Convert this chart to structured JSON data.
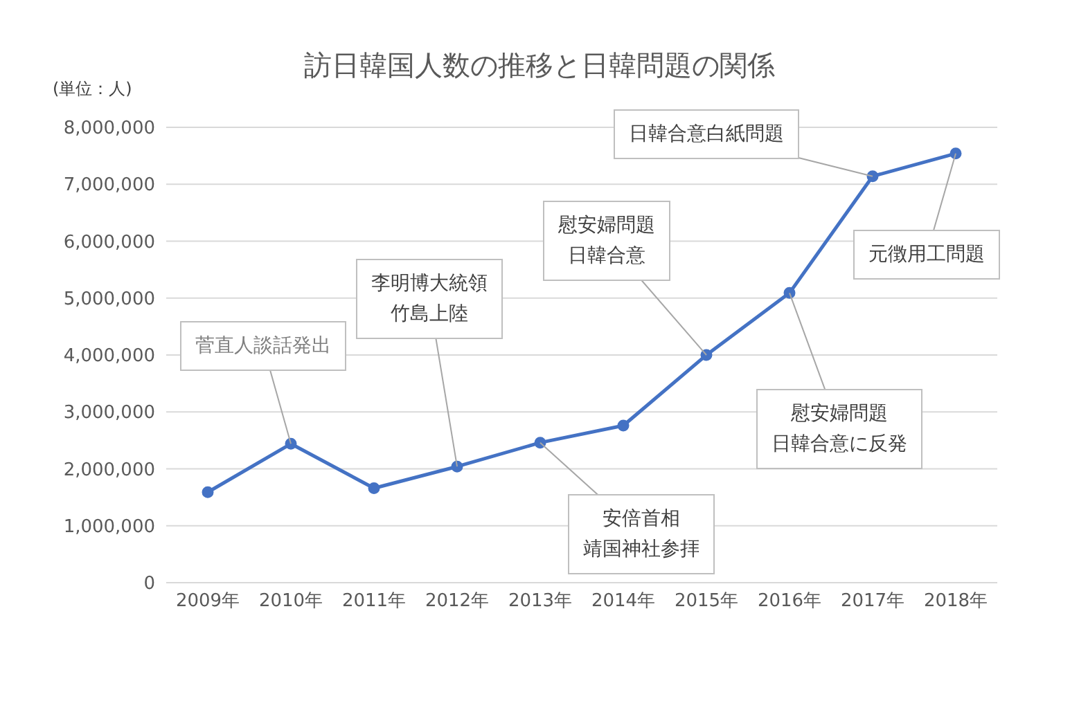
{
  "chart_data": {
    "type": "line",
    "title": "訪日韓国人数の推移と日韓問題の関係",
    "ylabel": "(単位：人)",
    "categories": [
      "2009年",
      "2010年",
      "2011年",
      "2012年",
      "2013年",
      "2014年",
      "2015年",
      "2016年",
      "2017年",
      "2018年"
    ],
    "series": [
      {
        "color": "#4472c4",
        "values": [
          1590000,
          2440000,
          1660000,
          2040000,
          2460000,
          2760000,
          4000000,
          5090000,
          7140000,
          7540000
        ]
      }
    ],
    "ylim": [
      0,
      8000000
    ],
    "yticks": [
      0,
      {
        "value": 1000000,
        "label": "1,000,000"
      },
      {
        "value": 2000000,
        "label": "2,000,000"
      },
      {
        "value": 3000000,
        "label": "3,000,000"
      },
      {
        "value": 4000000,
        "label": "4,000,000"
      },
      {
        "value": 5000000,
        "label": "5,000,000"
      },
      {
        "value": 6000000,
        "label": "6,000,000"
      },
      {
        "value": 7000000,
        "label": "7,000,000"
      },
      {
        "value": 8000000,
        "label": "8,000,000"
      }
    ],
    "grid": "y",
    "legend": false,
    "marker": "circle",
    "line_style": "solid",
    "annotations": [
      {
        "text": "菅直人談話発出",
        "x": "2010年",
        "y": 2440000
      },
      {
        "text": "李明博大統領竹島上陸",
        "x": "2012年",
        "y": 2040000
      },
      {
        "text": "安倍首相靖国神社参拝",
        "x": "2013年",
        "y": 2460000
      },
      {
        "text": "慰安婦問題日韓合意",
        "x": "2015年",
        "y": 4000000
      },
      {
        "text": "慰安婦問題日韓合意に反発",
        "x": "2016年",
        "y": 5090000
      },
      {
        "text": "日韓合意白紙問題",
        "x": "2017年",
        "y": 7140000
      },
      {
        "text": "元徴用工問題",
        "x": "2018年",
        "y": 7540000
      }
    ]
  }
}
